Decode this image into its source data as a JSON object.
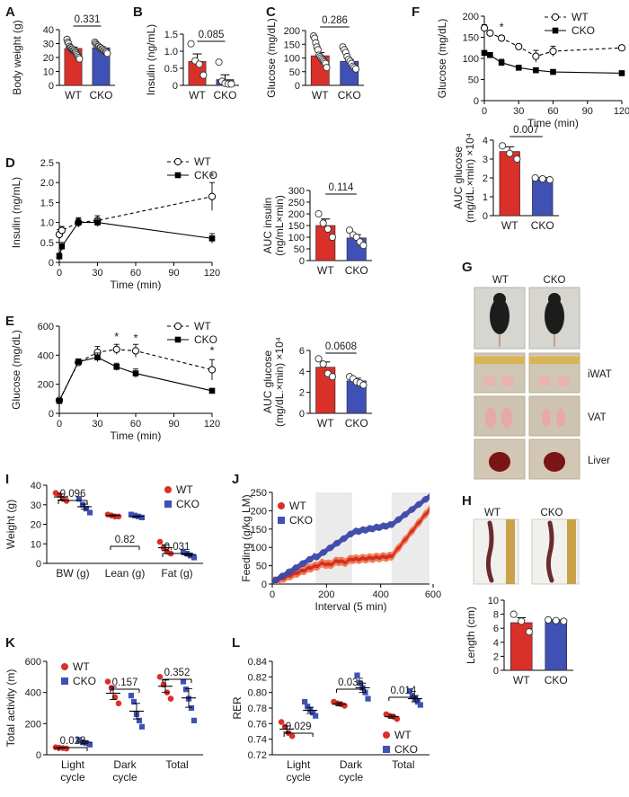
{
  "panel_letters": [
    "A",
    "B",
    "C",
    "D",
    "E",
    "F",
    "G",
    "H",
    "I",
    "J",
    "K",
    "L"
  ],
  "colors": {
    "wt_red": "#d9302a",
    "cko_blue": "#3f51b5",
    "feed_orange": "#f07850",
    "feed_red": "#d12a20",
    "feed_blue": "#3a46a8",
    "feed_shade": "#ebebeb"
  },
  "chart_data": [
    {
      "id": "A",
      "type": "bar",
      "categories": [
        "WT",
        "CKO"
      ],
      "values": [
        26.5,
        27.0
      ],
      "errors": [
        1.0,
        0.8
      ],
      "points": [
        [
          33,
          31,
          30,
          28,
          27,
          27,
          26,
          26,
          25,
          25,
          24,
          24,
          23,
          22,
          21,
          20,
          19
        ],
        [
          31,
          30,
          29,
          28,
          28,
          27,
          27,
          26,
          26,
          25,
          25,
          24,
          24,
          23
        ]
      ],
      "ylabel": "Body weight (g)",
      "ylim": [
        0,
        40
      ],
      "yticks": [
        0,
        10,
        20,
        30,
        40
      ],
      "pvalue": "0.331"
    },
    {
      "id": "B",
      "type": "bar",
      "categories": [
        "WT",
        "CKO"
      ],
      "values": [
        0.7,
        0.17
      ],
      "errors": [
        0.22,
        0.14
      ],
      "points": [
        [
          1.22,
          0.72,
          0.62,
          0.3
        ],
        [
          0.68,
          0.12,
          0.06,
          0.04,
          0.04
        ]
      ],
      "ylabel": "Insulin (ng/mL)",
      "ylim": [
        0,
        1.5
      ],
      "yticks": [
        "0",
        "0.5",
        "1.0",
        "1.5"
      ],
      "pvalue": "0.085"
    },
    {
      "id": "C",
      "type": "bar",
      "categories": [
        "WT",
        "CKO"
      ],
      "values": [
        108,
        88
      ],
      "errors": [
        12,
        7
      ],
      "points": [
        [
          180,
          172,
          155,
          140,
          130,
          110,
          105,
          100,
          95,
          90,
          85,
          80,
          65
        ],
        [
          140,
          130,
          120,
          105,
          95,
          88,
          80,
          70,
          65,
          60
        ]
      ],
      "ylabel": "Glucose (mg/dL)",
      "ylim": [
        0,
        200
      ],
      "yticks": [
        0,
        50,
        100,
        150,
        200
      ],
      "pvalue": "0.286"
    },
    {
      "id": "F_line",
      "type": "line",
      "x": [
        0,
        5,
        15,
        30,
        45,
        60,
        120
      ],
      "series": [
        {
          "name": "WT",
          "values": [
            172,
            160,
            148,
            128,
            105,
            117,
            125
          ],
          "errors": [
            8,
            5,
            6,
            5,
            14,
            12,
            6
          ]
        },
        {
          "name": "CKO",
          "values": [
            113,
            108,
            90,
            78,
            72,
            68,
            65
          ],
          "errors": [
            5,
            6,
            8,
            5,
            3,
            2,
            2
          ]
        }
      ],
      "xlabel": "Time (min)",
      "ylabel": "Glucose (mg/dL)",
      "xticks": [
        0,
        30,
        60,
        90,
        120
      ],
      "yticks": [
        0,
        50,
        100,
        150,
        200
      ],
      "ylim": [
        0,
        200
      ],
      "annotations": [
        "*"
      ]
    },
    {
      "id": "F_bar",
      "type": "bar",
      "categories": [
        "WT",
        "CKO"
      ],
      "values": [
        3.4,
        1.95
      ],
      "errors": [
        0.25,
        0.07
      ],
      "points": [
        [
          3.7,
          3.3,
          3.0
        ],
        [
          2.0,
          1.95,
          1.9
        ]
      ],
      "ylabel": "AUC glucose (mg/dL.×min) ×10⁴",
      "ylim": [
        0,
        4
      ],
      "yticks": [
        0,
        1,
        2,
        3,
        4
      ],
      "pvalue": "0.007"
    },
    {
      "id": "D_line",
      "type": "line",
      "x": [
        0,
        2,
        15,
        30,
        120
      ],
      "series": [
        {
          "name": "WT",
          "values": [
            0.7,
            0.8,
            1.0,
            1.05,
            1.65
          ],
          "errors": [
            0.12,
            0.1,
            0.12,
            0.12,
            0.35
          ]
        },
        {
          "name": "CKO",
          "values": [
            0.15,
            0.4,
            1.0,
            1.0,
            0.6
          ],
          "errors": [
            0.08,
            0.1,
            0.1,
            0.1,
            0.12
          ]
        }
      ],
      "xlabel": "Time (min)",
      "ylabel": "Insulin (ng/mL)",
      "xticks": [
        0,
        30,
        60,
        90,
        120
      ],
      "yticks": [
        "0",
        "0.5",
        "1.0",
        "1.5",
        "2.0",
        "2.5"
      ],
      "ylim": [
        0,
        2.5
      ],
      "annotations": [
        "*"
      ]
    },
    {
      "id": "D_bar",
      "type": "bar",
      "categories": [
        "WT",
        "CKO"
      ],
      "values": [
        150,
        97
      ],
      "errors": [
        28,
        14
      ],
      "points": [
        [
          200,
          160,
          135,
          100
        ],
        [
          130,
          110,
          100,
          80,
          65
        ]
      ],
      "ylabel": "AUC insulin (ng/mL×min)",
      "ylim": [
        0,
        300
      ],
      "yticks": [
        0,
        50,
        100,
        150,
        200,
        250,
        300
      ],
      "pvalue": "0.114"
    },
    {
      "id": "E_line",
      "type": "line",
      "x": [
        0,
        15,
        30,
        45,
        60,
        120
      ],
      "series": [
        {
          "name": "WT",
          "values": [
            90,
            350,
            420,
            440,
            430,
            300
          ],
          "errors": [
            10,
            20,
            40,
            35,
            45,
            70
          ]
        },
        {
          "name": "CKO",
          "values": [
            85,
            355,
            385,
            320,
            275,
            155
          ],
          "errors": [
            10,
            20,
            30,
            25,
            30,
            15
          ]
        }
      ],
      "xlabel": "Time (min)",
      "ylabel": "Glucose (mg/dL)",
      "xticks": [
        0,
        30,
        60,
        90,
        120
      ],
      "yticks": [
        0,
        200,
        400,
        600
      ],
      "ylim": [
        0,
        600
      ],
      "annotations": [
        "*",
        "*",
        "*"
      ]
    },
    {
      "id": "E_bar",
      "type": "bar",
      "categories": [
        "WT",
        "CKO"
      ],
      "values": [
        4.4,
        3.1
      ],
      "errors": [
        0.5,
        0.25
      ],
      "points": [
        [
          5.2,
          4.7,
          3.8,
          3.5
        ],
        [
          3.5,
          3.3,
          3.0,
          2.9,
          2.7
        ]
      ],
      "ylabel": "AUC glucose (mg/dL.×min) ×10⁴",
      "ylim": [
        0,
        6
      ],
      "yticks": [
        0,
        2,
        4,
        6
      ],
      "pvalue": "0.0608"
    },
    {
      "id": "H_bar",
      "type": "bar",
      "categories": [
        "WT",
        "CKO"
      ],
      "values": [
        6.8,
        7.1
      ],
      "errors": [
        0.7,
        0.1
      ],
      "points": [
        [
          8.0,
          7.0,
          5.5
        ],
        [
          7.2,
          7.1,
          7.0
        ]
      ],
      "ylabel": "Length (cm)",
      "ylim": [
        0,
        10
      ],
      "yticks": [
        0,
        2,
        4,
        6,
        8,
        10
      ]
    },
    {
      "id": "I",
      "type": "scatter",
      "categories": [
        "BW (g)",
        "Lean (g)",
        "Fat (g)"
      ],
      "series": [
        {
          "name": "WT",
          "values": [
            [
              36,
              35,
              33,
              32
            ],
            [
              25,
              24.5,
              24,
              24
            ],
            [
              11,
              8,
              6,
              5
            ]
          ],
          "means": [
            34,
            24.5,
            8
          ],
          "sem": [
            1.5,
            0.3,
            1.5
          ]
        },
        {
          "name": "CKO",
          "values": [
            [
              33,
              30,
              28,
              26
            ],
            [
              25,
              24.5,
              24,
              23.5
            ],
            [
              6,
              5,
              4,
              3
            ]
          ],
          "means": [
            29,
            24,
            4.5
          ],
          "sem": [
            1.3,
            0.3,
            0.7
          ]
        }
      ],
      "ylabel": "Weight (g)",
      "ylim": [
        0,
        40
      ],
      "yticks": [
        0,
        10,
        20,
        30,
        40
      ],
      "pvalues": [
        "0.096",
        "0.82",
        "0.031"
      ]
    },
    {
      "id": "J",
      "type": "area",
      "x_range": [
        0,
        580
      ],
      "series": [
        {
          "name": "WT"
        },
        {
          "name": "CKO"
        }
      ],
      "xlabel": "Interval (5 min)",
      "ylabel": "Feeding (g/kg LM)",
      "xticks": [
        0,
        200,
        400,
        600
      ],
      "yticks": [
        0,
        50,
        100,
        150,
        200,
        250
      ],
      "ylim": [
        0,
        250
      ],
      "shaded_x": [
        [
          160,
          295
        ],
        [
          440,
          580
        ]
      ]
    },
    {
      "id": "K",
      "type": "scatter",
      "categories": [
        "Light\ncycle",
        "Dark\ncycle",
        "Total"
      ],
      "series": [
        {
          "name": "WT",
          "values": [
            [
              48,
              45,
              43,
              40
            ],
            [
              470,
              430,
              370,
              330
            ],
            [
              500,
              450,
              400,
              360
            ]
          ],
          "means": [
            45,
            395,
            440
          ],
          "sem": [
            3,
            40,
            40
          ]
        },
        {
          "name": "CKO",
          "values": [
            [
              95,
              80,
              75,
              65
            ],
            [
              380,
              340,
              260,
              220,
              180
            ],
            [
              470,
              420,
              360,
              300,
              220
            ]
          ],
          "means": [
            80,
            280,
            365
          ],
          "sem": [
            10,
            50,
            60
          ]
        }
      ],
      "ylabel": "Total activity (m)",
      "ylim": [
        0,
        600
      ],
      "yticks": [
        0,
        200,
        400,
        600
      ],
      "pvalues": [
        "0.023",
        "0.157",
        "0.352"
      ]
    },
    {
      "id": "L",
      "type": "scatter",
      "categories": [
        "Light\ncycle",
        "Dark\ncycle",
        "Total"
      ],
      "series": [
        {
          "name": "WT",
          "values": [
            [
              0.762,
              0.756,
              0.748,
              0.744
            ],
            [
              0.788,
              0.786,
              0.785,
              0.783
            ],
            [
              0.772,
              0.77,
              0.769,
              0.766
            ]
          ],
          "means": [
            0.753,
            0.785,
            0.769
          ],
          "sem": [
            0.004,
            0.002,
            0.002
          ]
        },
        {
          "name": "CKO",
          "values": [
            [
              0.788,
              0.782,
              0.778,
              0.774,
              0.77
            ],
            [
              0.822,
              0.812,
              0.806,
              0.8,
              0.792
            ],
            [
              0.802,
              0.796,
              0.792,
              0.788,
              0.784
            ]
          ],
          "means": [
            0.777,
            0.806,
            0.792
          ],
          "sem": [
            0.004,
            0.006,
            0.004
          ]
        }
      ],
      "ylabel": "RER",
      "ylim": [
        0.72,
        0.84
      ],
      "yticks": [
        "0.72",
        "0.74",
        "0.76",
        "0.78",
        "0.80",
        "0.82",
        "0.84"
      ],
      "pvalues": [
        "0.029",
        "0.035",
        "0.014"
      ]
    }
  ],
  "photos": {
    "g_headers": [
      "WT",
      "CKO"
    ],
    "g_rows": [
      "iWAT",
      "VAT",
      "Liver"
    ],
    "h_headers": [
      "WT",
      "CKO"
    ]
  }
}
